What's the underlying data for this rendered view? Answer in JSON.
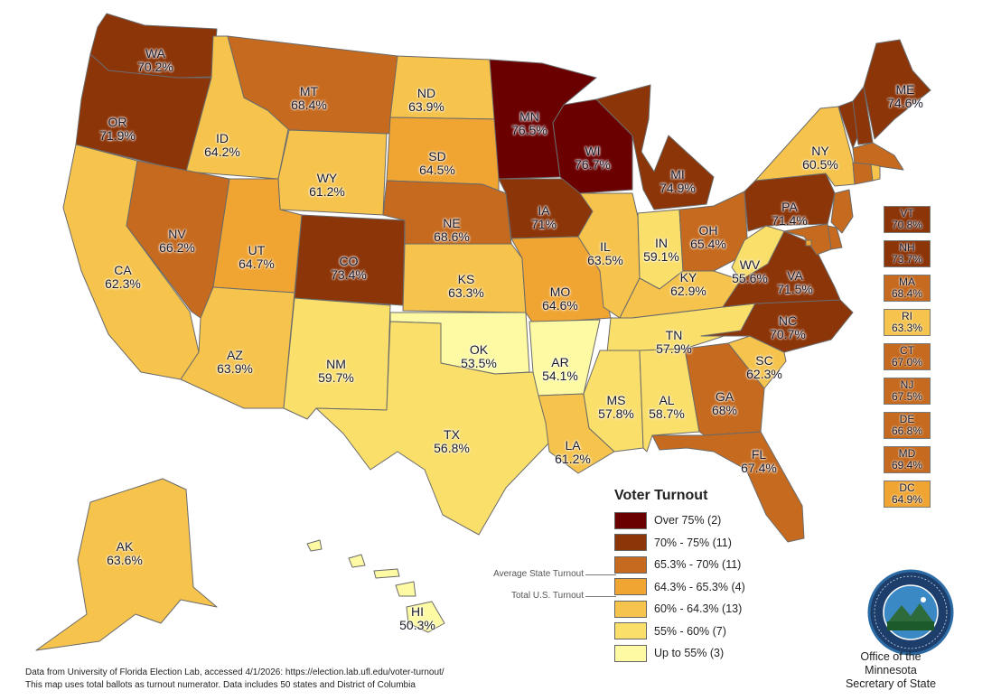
{
  "colors": {
    "over75": "#6b0000",
    "c70_75": "#8c3509",
    "c653_70": "#c56a1e",
    "c643_653": "#f0a533",
    "c60_643": "#f6c44d",
    "c55_60": "#fadf6b",
    "upto55": "#fdfaa3"
  },
  "states": [
    {
      "abbr": "WA",
      "pct": "70.2%",
      "color": "#8c3509"
    },
    {
      "abbr": "OR",
      "pct": "71.9%",
      "color": "#8c3509"
    },
    {
      "abbr": "CA",
      "pct": "62.3%",
      "color": "#f6c44d"
    },
    {
      "abbr": "ID",
      "pct": "64.2%",
      "color": "#f6c44d"
    },
    {
      "abbr": "NV",
      "pct": "66.2%",
      "color": "#c56a1e"
    },
    {
      "abbr": "MT",
      "pct": "68.4%",
      "color": "#c56a1e"
    },
    {
      "abbr": "WY",
      "pct": "61.2%",
      "color": "#f6c44d"
    },
    {
      "abbr": "UT",
      "pct": "64.7%",
      "color": "#f0a533"
    },
    {
      "abbr": "AZ",
      "pct": "63.9%",
      "color": "#f6c44d"
    },
    {
      "abbr": "CO",
      "pct": "73.4%",
      "color": "#8c3509"
    },
    {
      "abbr": "NM",
      "pct": "59.7%",
      "color": "#fadf6b"
    },
    {
      "abbr": "ND",
      "pct": "63.9%",
      "color": "#f6c44d"
    },
    {
      "abbr": "SD",
      "pct": "64.5%",
      "color": "#f0a533"
    },
    {
      "abbr": "NE",
      "pct": "68.6%",
      "color": "#c56a1e"
    },
    {
      "abbr": "KS",
      "pct": "63.3%",
      "color": "#f6c44d"
    },
    {
      "abbr": "OK",
      "pct": "53.5%",
      "color": "#fdfaa3"
    },
    {
      "abbr": "TX",
      "pct": "56.8%",
      "color": "#fadf6b"
    },
    {
      "abbr": "MN",
      "pct": "76.5%",
      "color": "#6b0000"
    },
    {
      "abbr": "IA",
      "pct": "71%",
      "color": "#8c3509"
    },
    {
      "abbr": "MO",
      "pct": "64.6%",
      "color": "#f0a533"
    },
    {
      "abbr": "AR",
      "pct": "54.1%",
      "color": "#fdfaa3"
    },
    {
      "abbr": "LA",
      "pct": "61.2%",
      "color": "#f6c44d"
    },
    {
      "abbr": "WI",
      "pct": "76.7%",
      "color": "#6b0000"
    },
    {
      "abbr": "IL",
      "pct": "63.5%",
      "color": "#f6c44d"
    },
    {
      "abbr": "MI",
      "pct": "74.9%",
      "color": "#8c3509"
    },
    {
      "abbr": "IN",
      "pct": "59.1%",
      "color": "#fadf6b"
    },
    {
      "abbr": "OH",
      "pct": "65.4%",
      "color": "#c56a1e"
    },
    {
      "abbr": "KY",
      "pct": "62.9%",
      "color": "#f6c44d"
    },
    {
      "abbr": "TN",
      "pct": "57.9%",
      "color": "#fadf6b"
    },
    {
      "abbr": "MS",
      "pct": "57.8%",
      "color": "#fadf6b"
    },
    {
      "abbr": "AL",
      "pct": "58.7%",
      "color": "#fadf6b"
    },
    {
      "abbr": "GA",
      "pct": "68%",
      "color": "#c56a1e"
    },
    {
      "abbr": "FL",
      "pct": "67.4%",
      "color": "#c56a1e"
    },
    {
      "abbr": "SC",
      "pct": "62.3%",
      "color": "#f6c44d"
    },
    {
      "abbr": "NC",
      "pct": "70.7%",
      "color": "#8c3509"
    },
    {
      "abbr": "VA",
      "pct": "71.5%",
      "color": "#8c3509"
    },
    {
      "abbr": "WV",
      "pct": "55.6%",
      "color": "#fadf6b"
    },
    {
      "abbr": "PA",
      "pct": "71.4%",
      "color": "#8c3509"
    },
    {
      "abbr": "NY",
      "pct": "60.5%",
      "color": "#f6c44d"
    },
    {
      "abbr": "ME",
      "pct": "74.6%",
      "color": "#8c3509"
    },
    {
      "abbr": "AK",
      "pct": "63.6%",
      "color": "#f6c44d"
    },
    {
      "abbr": "HI",
      "pct": "50.3%",
      "color": "#fdfaa3"
    }
  ],
  "small_states": [
    {
      "abbr": "VT",
      "pct": "70.8%",
      "color": "#8c3509"
    },
    {
      "abbr": "NH",
      "pct": "73.7%",
      "color": "#8c3509"
    },
    {
      "abbr": "MA",
      "pct": "68.4%",
      "color": "#c56a1e"
    },
    {
      "abbr": "RI",
      "pct": "63.3%",
      "color": "#f6c44d"
    },
    {
      "abbr": "CT",
      "pct": "67.0%",
      "color": "#c56a1e"
    },
    {
      "abbr": "NJ",
      "pct": "67.5%",
      "color": "#c56a1e"
    },
    {
      "abbr": "DE",
      "pct": "66.8%",
      "color": "#c56a1e"
    },
    {
      "abbr": "MD",
      "pct": "69.4%",
      "color": "#c56a1e"
    },
    {
      "abbr": "DC",
      "pct": "64.9%",
      "color": "#f0a533"
    }
  ],
  "legend": {
    "title": "Voter Turnout",
    "items": [
      {
        "label": "Over 75% (2)",
        "color": "#6b0000"
      },
      {
        "label": "70% - 75% (11)",
        "color": "#8c3509"
      },
      {
        "label": "65.3% - 70% (11)",
        "color": "#c56a1e"
      },
      {
        "label": "64.3% - 65.3% (4)",
        "color": "#f0a533"
      },
      {
        "label": "60% - 64.3% (13)",
        "color": "#f6c44d"
      },
      {
        "label": "55% - 60% (7)",
        "color": "#fadf6b"
      },
      {
        "label": "Up to 55% (3)",
        "color": "#fdfaa3"
      }
    ],
    "average_state_turnout": "Average State Turnout",
    "total_us_turnout": "Total U.S. Turnout"
  },
  "footer": {
    "line1": "Data from University of Florida Election Lab, accessed 4/1/2026: https://election.lab.ufl.edu/voter-turnout/",
    "line2": "This map uses total ballots as turnout numerator. Data includes 50 states and District of Columbia"
  },
  "office": {
    "line1": "Office of the Minnesota",
    "line2": "Secretary of State"
  },
  "seal_text": "THE GREAT SEAL OF THE STATE OF MINNESOTA"
}
